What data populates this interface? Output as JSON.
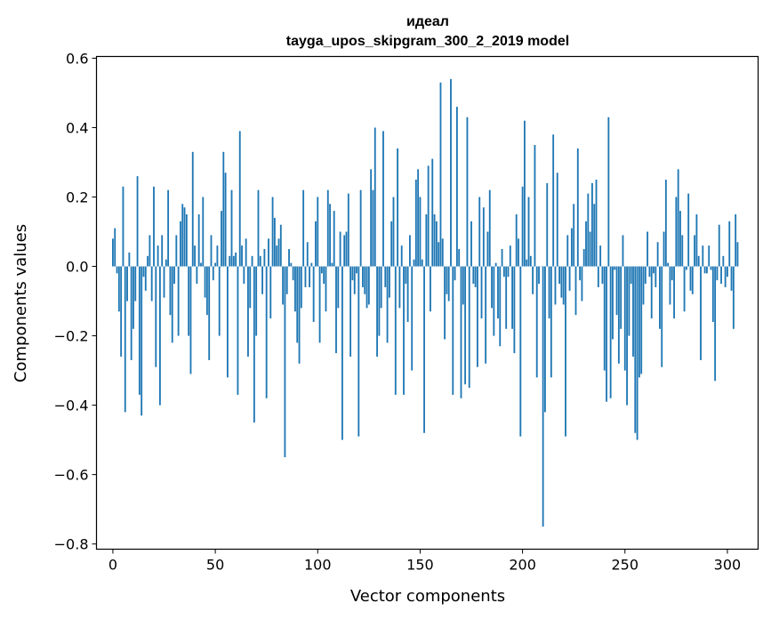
{
  "chart_data": {
    "type": "bar",
    "title_line1": "идеал",
    "title_line2": "tayga_upos_skipgram_300_2_2019 model",
    "xlabel": "Vector components",
    "ylabel": "Components values",
    "xlim": [
      -8,
      315
    ],
    "ylim": [
      -0.815,
      0.605
    ],
    "xticks": [
      0,
      50,
      100,
      150,
      200,
      250,
      300
    ],
    "xtick_labels": [
      "0",
      "50",
      "100",
      "150",
      "200",
      "250",
      "300"
    ],
    "yticks": [
      -0.8,
      -0.6,
      -0.4,
      -0.2,
      0.0,
      0.2,
      0.4,
      0.6
    ],
    "ytick_labels": [
      "−0.8",
      "−0.6",
      "−0.4",
      "−0.2",
      "0.0",
      "0.2",
      "0.4",
      "0.6"
    ],
    "bar_color": "#1f77b4",
    "values": [
      0.08,
      0.11,
      -0.02,
      -0.13,
      -0.26,
      0.23,
      -0.42,
      -0.1,
      0.04,
      -0.27,
      -0.18,
      -0.1,
      0.26,
      -0.37,
      -0.43,
      -0.03,
      -0.07,
      0.03,
      0.09,
      -0.1,
      0.23,
      -0.29,
      0.06,
      -0.4,
      0.09,
      -0.09,
      0.02,
      0.22,
      -0.14,
      -0.22,
      -0.05,
      0.09,
      -0.2,
      0.13,
      0.18,
      0.17,
      0.15,
      -0.2,
      -0.31,
      0.33,
      0.06,
      -0.05,
      0.15,
      0.01,
      0.2,
      -0.09,
      -0.14,
      -0.27,
      0.09,
      -0.04,
      0.01,
      0.06,
      -0.2,
      0.16,
      0.33,
      0.27,
      -0.32,
      0.03,
      0.22,
      0.03,
      0.04,
      -0.37,
      0.39,
      0.06,
      -0.05,
      0.08,
      -0.26,
      -0.12,
      0.03,
      -0.45,
      -0.2,
      0.22,
      0.03,
      -0.08,
      0.05,
      -0.38,
      0.08,
      -0.15,
      0.2,
      0.14,
      0.06,
      0.08,
      0.12,
      -0.11,
      -0.55,
      -0.08,
      0.05,
      0.01,
      -0.04,
      -0.13,
      -0.22,
      -0.28,
      -0.12,
      0.22,
      -0.06,
      0.07,
      -0.06,
      0.01,
      -0.16,
      0.13,
      0.2,
      -0.22,
      -0.02,
      -0.05,
      -0.13,
      0.22,
      0.18,
      0.01,
      0.16,
      -0.25,
      -0.12,
      0.1,
      -0.5,
      0.09,
      0.1,
      0.21,
      -0.26,
      -0.04,
      -0.08,
      -0.02,
      -0.49,
      0.22,
      -0.06,
      -0.08,
      -0.12,
      -0.11,
      0.28,
      0.22,
      0.4,
      -0.26,
      -0.2,
      -0.12,
      0.39,
      -0.06,
      -0.22,
      -0.09,
      0.13,
      0.2,
      -0.37,
      0.34,
      -0.12,
      0.06,
      -0.37,
      -0.05,
      -0.16,
      0.09,
      -0.3,
      0.02,
      0.25,
      0.28,
      0.2,
      0.02,
      -0.48,
      0.15,
      0.29,
      -0.13,
      0.31,
      0.15,
      0.13,
      0.07,
      0.53,
      0.08,
      -0.21,
      -0.08,
      -0.1,
      0.54,
      -0.37,
      -0.04,
      0.46,
      0.05,
      -0.38,
      -0.11,
      -0.34,
      0.43,
      -0.35,
      0.13,
      -0.05,
      -0.06,
      -0.29,
      0.2,
      -0.15,
      0.17,
      -0.28,
      0.1,
      0.22,
      -0.12,
      -0.2,
      0.01,
      -0.15,
      -0.23,
      0.05,
      -0.03,
      -0.18,
      -0.03,
      0.06,
      -0.18,
      -0.25,
      0.15,
      0.08,
      -0.49,
      0.23,
      0.42,
      0.02,
      0.2,
      0.03,
      -0.08,
      0.35,
      -0.32,
      -0.05,
      0.0,
      -0.75,
      -0.42,
      0.24,
      -0.15,
      -0.32,
      0.38,
      -0.11,
      0.27,
      -0.05,
      -0.09,
      -0.11,
      -0.49,
      0.09,
      -0.07,
      0.11,
      0.18,
      -0.14,
      0.34,
      -0.04,
      -0.1,
      0.05,
      0.13,
      0.21,
      0.1,
      0.24,
      0.18,
      0.25,
      -0.06,
      0.06,
      -0.05,
      -0.3,
      -0.39,
      0.43,
      -0.38,
      -0.21,
      -0.01,
      -0.14,
      -0.28,
      -0.18,
      0.09,
      -0.3,
      -0.4,
      -0.2,
      -0.05,
      -0.26,
      -0.48,
      -0.5,
      -0.32,
      -0.31,
      -0.11,
      -0.05,
      0.1,
      -0.03,
      -0.15,
      -0.02,
      -0.06,
      0.07,
      -0.18,
      -0.29,
      0.1,
      0.25,
      0.01,
      -0.11,
      -0.04,
      -0.15,
      0.2,
      0.28,
      0.16,
      0.09,
      -0.13,
      -0.01,
      0.21,
      -0.07,
      -0.08,
      0.09,
      0.15,
      0.03,
      -0.27,
      0.06,
      -0.02,
      -0.02,
      0.06,
      -0.01,
      -0.16,
      -0.33,
      -0.04,
      0.12,
      -0.05,
      0.03,
      -0.06,
      -0.03,
      0.13,
      -0.07,
      -0.18,
      0.15,
      0.07
    ]
  }
}
